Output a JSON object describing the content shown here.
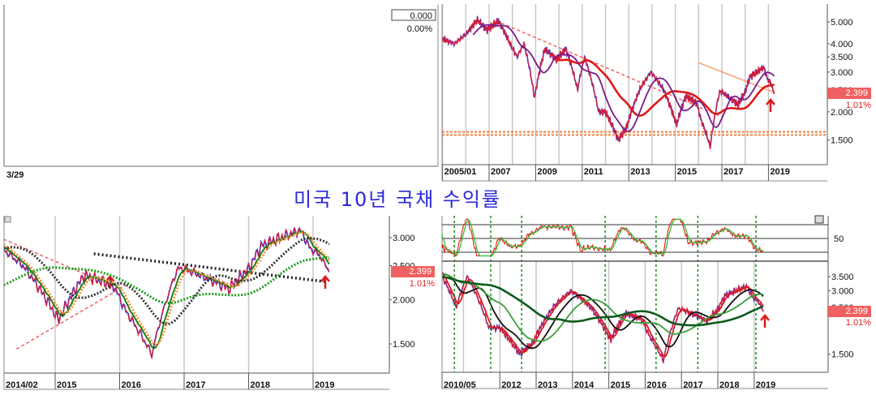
{
  "title": "미국 10년 국채 수익률",
  "empty_panel": {
    "value": "0.000",
    "change": "0.00%",
    "date": "3/29"
  },
  "last_value": "2.399",
  "last_change": "1.01%",
  "colors": {
    "price_up": "#ee1c1c",
    "price_down": "#2a2ae8",
    "title": "#2a2ad8",
    "last_box": "#f06060"
  },
  "chart_data": [
    {
      "type": "line",
      "panel": "top-left",
      "series": []
    },
    {
      "type": "line",
      "panel": "top-right",
      "scale": "log",
      "ylim": [
        1.25,
        5.5
      ],
      "xlim": [
        2005.0,
        2021.6
      ],
      "y_ticks": [
        "5.000",
        "4.000",
        "3.500",
        "3.000",
        "2.500",
        "2.000",
        "1.500"
      ],
      "y_tick_values": [
        5.0,
        4.0,
        3.5,
        3.0,
        2.5,
        2.0,
        1.5
      ],
      "x_ticks": [
        "2005/01",
        "2007",
        "2009",
        "2011",
        "2013",
        "2015",
        "2017",
        "2019"
      ],
      "x_tick_values": [
        2005.0,
        2007,
        2009,
        2011,
        2013,
        2015,
        2017,
        2019
      ],
      "moving_averages": [
        {
          "color": "#e01818",
          "weeks": 104,
          "start": 2009.8
        },
        {
          "color": "#7a1a8a",
          "weeks": 40,
          "start": 2006.3
        }
      ],
      "annotations": [
        {
          "kind": "trendline",
          "color": "#f06060",
          "from": [
            2007.3,
            5.05
          ],
          "to": [
            2016.9,
            1.92
          ]
        },
        {
          "kind": "trendline",
          "color": "#f4a070",
          "from": [
            2016.0,
            3.3
          ],
          "to": [
            2019.2,
            2.45
          ]
        },
        {
          "kind": "hline",
          "color": "#f08040",
          "value": 1.63
        },
        {
          "kind": "hline",
          "color": "#f08040",
          "value": 1.58
        }
      ]
    },
    {
      "type": "line",
      "panel": "bottom-left",
      "scale": "log",
      "ylim": [
        1.25,
        3.35
      ],
      "xlim": [
        2014.1,
        2020.2
      ],
      "y_ticks": [
        "3.000",
        "2.500",
        "2.000",
        "1.500"
      ],
      "y_tick_values": [
        3.0,
        2.5,
        2.0,
        1.5
      ],
      "x_ticks": [
        "2014/02",
        "2015",
        "2016",
        "2017",
        "2018",
        "2019"
      ],
      "x_tick_values": [
        2014.1,
        2015,
        2016,
        2017,
        2018,
        2019
      ],
      "moving_averages": [
        {
          "color": "#0a7a0a",
          "weeks": 8,
          "style": "solid",
          "start": 2014.1
        },
        {
          "color": "#f59040",
          "weeks": 12,
          "style": "dotted",
          "start": 2014.1
        },
        {
          "color": "#333333",
          "weeks": 40,
          "style": "dotted",
          "start": 2014.1
        },
        {
          "color": "#1a9a1a",
          "weeks": 104,
          "style": "dotted",
          "start": 2014.1
        }
      ],
      "annotations": [
        {
          "kind": "trendline",
          "color": "#f06060",
          "from": [
            2014.2,
            2.97
          ],
          "to": [
            2015.5,
            2.35
          ]
        },
        {
          "kind": "trendline",
          "color": "#f06060",
          "from": [
            2014.4,
            1.45
          ],
          "to": [
            2016.1,
            2.2
          ]
        },
        {
          "kind": "dotted",
          "color": "#222222",
          "from": [
            2015.6,
            2.7
          ],
          "to": [
            2019.2,
            2.25
          ]
        },
        {
          "kind": "arrow",
          "color": "#e01818",
          "at": [
            2015.85,
            2.15
          ]
        }
      ]
    },
    {
      "type": "line",
      "panel": "bottom-right",
      "scale": "log",
      "ylim": [
        1.3,
        3.9
      ],
      "xlim": [
        2010.4,
        2021.0
      ],
      "y_ticks": [
        "3.500",
        "3.000",
        "2.500",
        "1.500"
      ],
      "y_tick_values": [
        3.5,
        3.0,
        2.5,
        1.5
      ],
      "x_ticks": [
        "2010/05",
        "2012",
        "2013",
        "2014",
        "2015",
        "2016",
        "2017",
        "2018",
        "2019"
      ],
      "x_tick_values": [
        2010.4,
        2012,
        2013,
        2014,
        2015,
        2016,
        2017,
        2018,
        2019
      ],
      "oscillator": {
        "y_tick": "50",
        "levels": [
          80,
          50,
          20
        ],
        "ylim": [
          0,
          100
        ],
        "colors": [
          "#e01818",
          "#30c030"
        ]
      },
      "signal_lines": [
        2010.75,
        2011.75,
        2012.6,
        2014.9,
        2016.3,
        2017.45,
        2019.05
      ],
      "moving_averages": [
        {
          "color": "#e01818",
          "weeks": 8,
          "start": 2010.4
        },
        {
          "color": "#111111",
          "weeks": 30,
          "start": 2010.4
        },
        {
          "color": "#3aa03a",
          "weeks": 60,
          "start": 2010.4
        },
        {
          "color": "#0d5a1d",
          "weeks": 140,
          "start": 2010.4
        }
      ]
    }
  ],
  "price_series": {
    "x": [
      2005.0,
      2005.5,
      2006.0,
      2006.5,
      2006.9,
      2007.4,
      2007.9,
      2008.2,
      2008.5,
      2008.95,
      2009.4,
      2009.9,
      2010.3,
      2010.8,
      2011.1,
      2011.7,
      2012.0,
      2012.55,
      2012.9,
      2013.5,
      2013.95,
      2014.5,
      2015.05,
      2015.45,
      2015.9,
      2016.1,
      2016.5,
      2016.9,
      2017.0,
      2017.7,
      2018.0,
      2018.2,
      2018.8,
      2018.95,
      2019.1,
      2019.25
    ],
    "y": [
      4.2,
      4.0,
      4.4,
      5.1,
      4.6,
      5.05,
      4.0,
      3.5,
      4.0,
      2.3,
      3.8,
      3.4,
      3.8,
      2.5,
      3.5,
      2.0,
      2.0,
      1.5,
      1.7,
      2.55,
      3.0,
      2.5,
      1.75,
      2.35,
      2.2,
      1.85,
      1.4,
      2.45,
      2.45,
      2.15,
      2.45,
      2.85,
      3.15,
      2.8,
      2.68,
      2.399
    ]
  }
}
